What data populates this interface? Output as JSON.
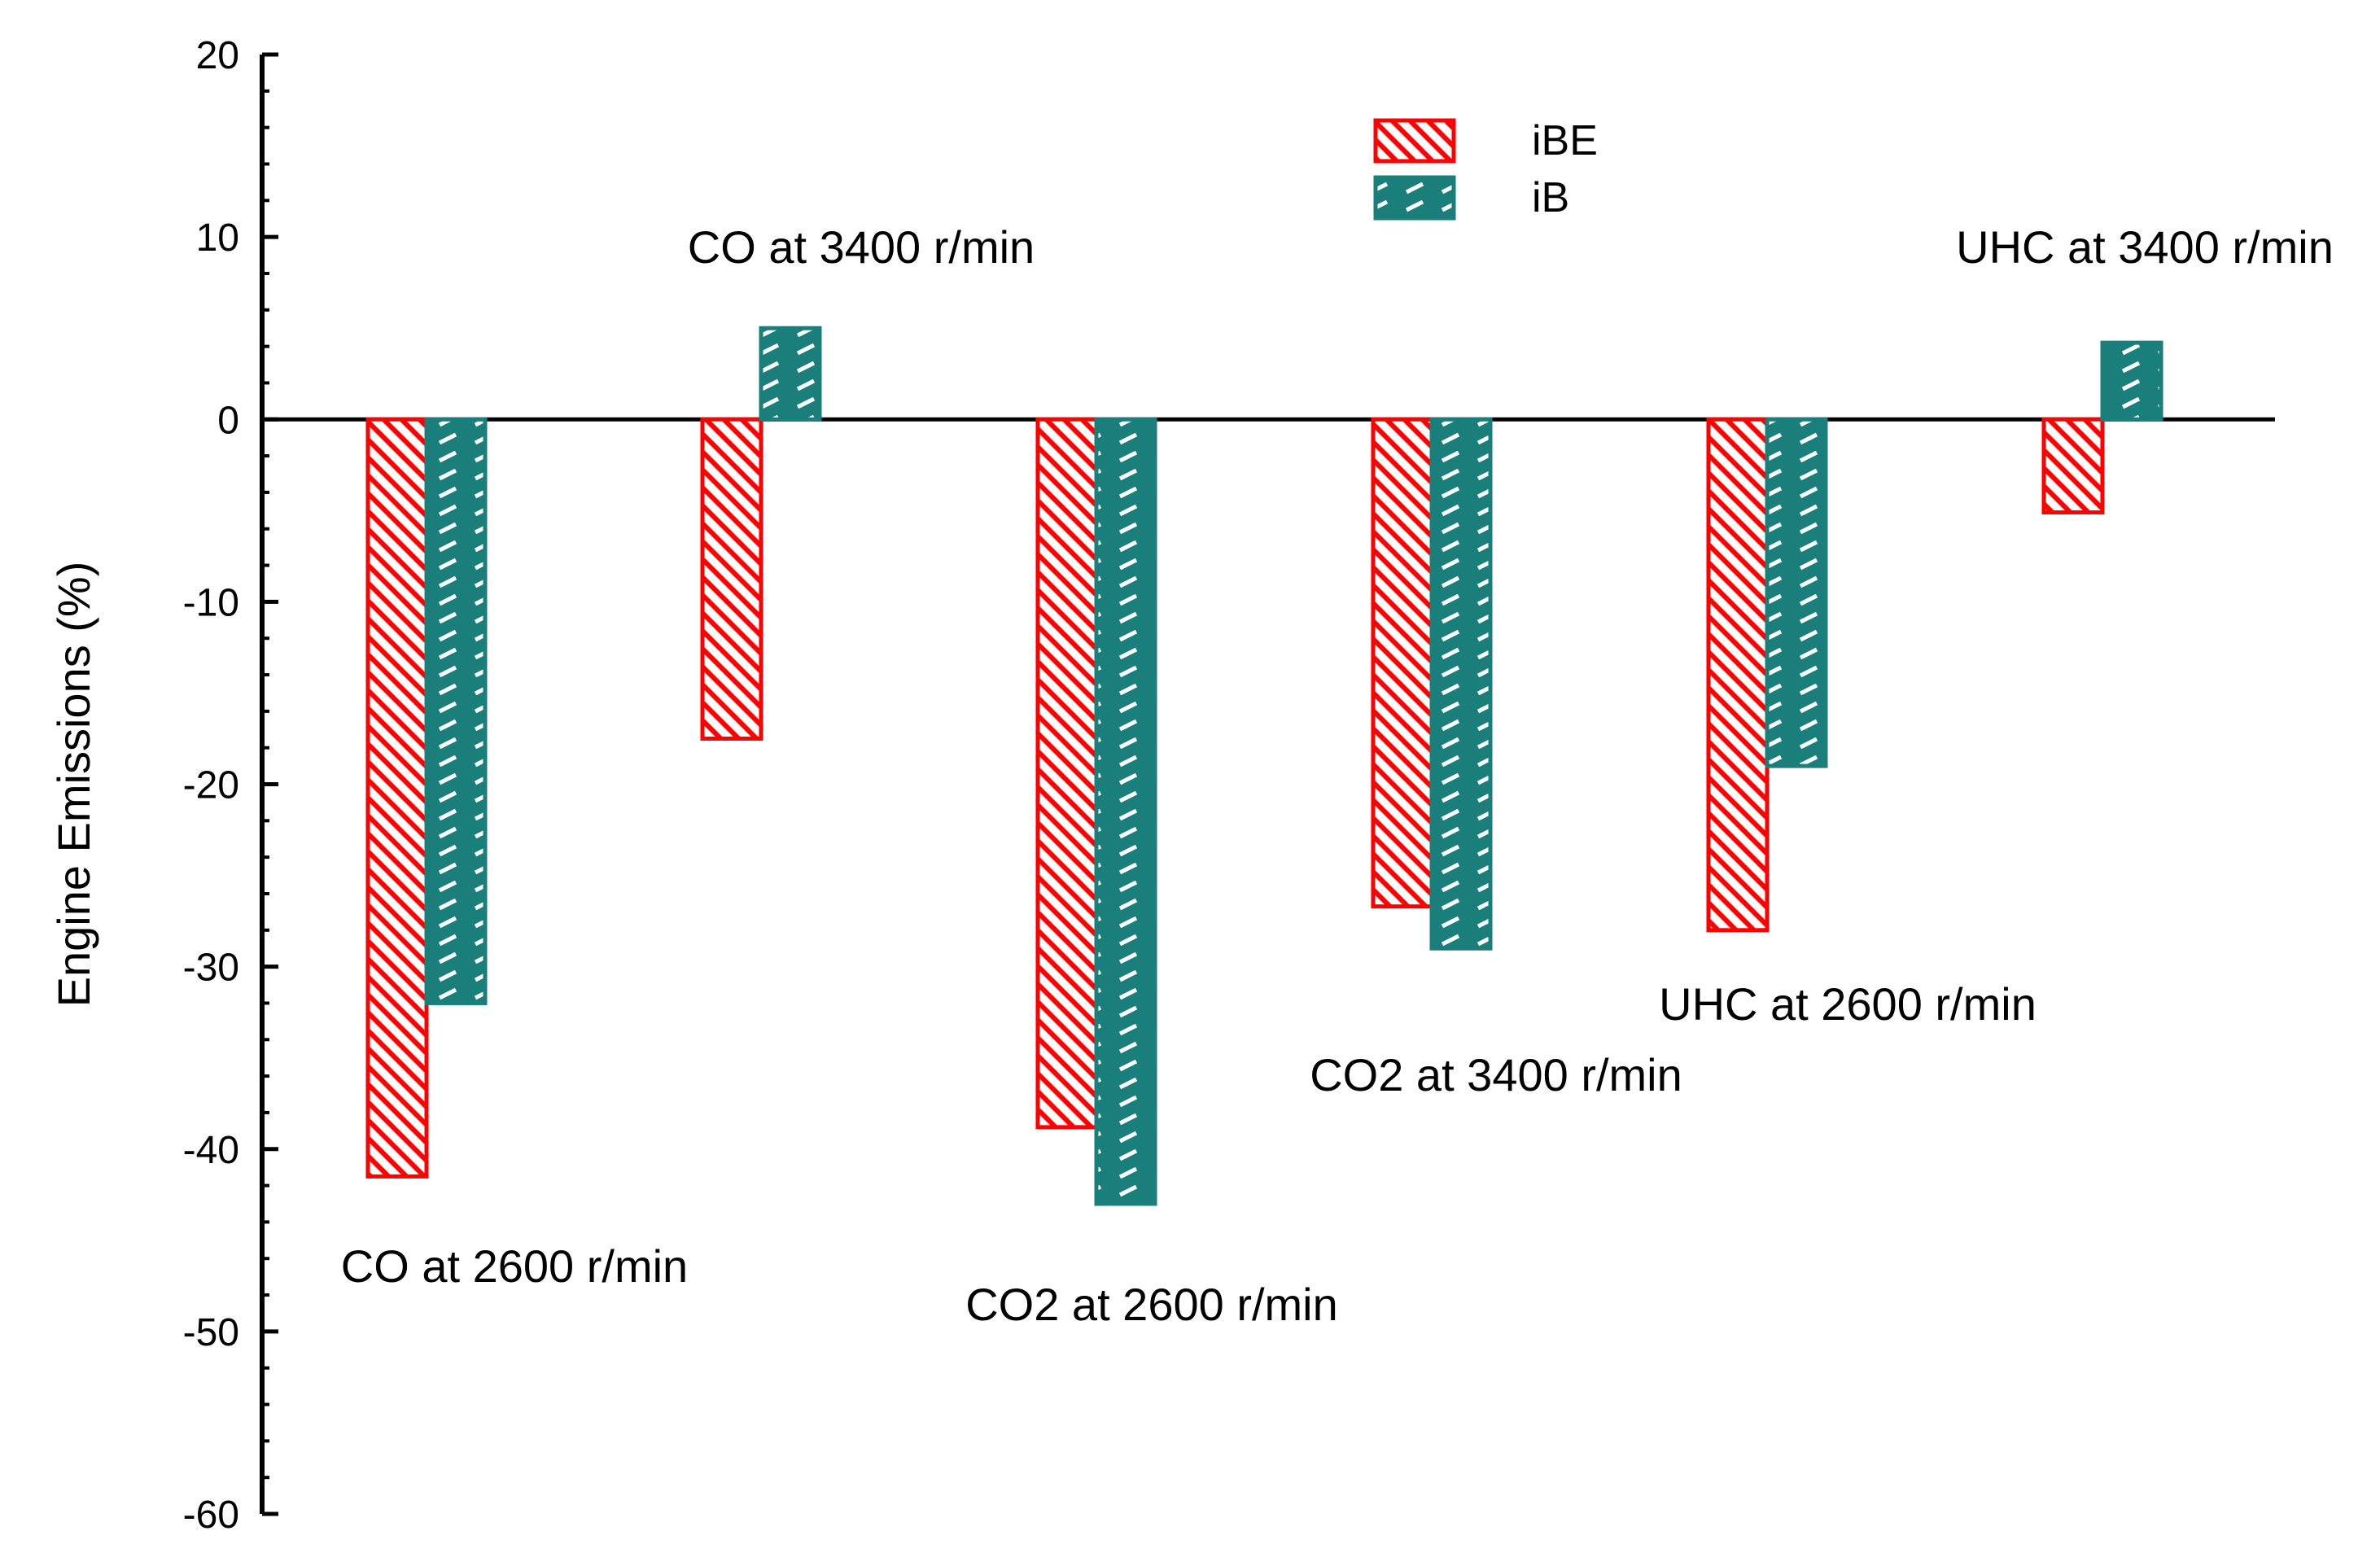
{
  "chart_data": {
    "type": "bar",
    "title": "",
    "xlabel": "",
    "ylabel": "Engine Emissions (%)",
    "ylim": [
      -60,
      20
    ],
    "yticks": [
      20,
      10,
      0,
      -10,
      -20,
      -30,
      -40,
      -50,
      -60
    ],
    "grid": false,
    "legend_position": "top-right",
    "categories": [
      "CO at 2600 r/min",
      "CO at 3400 r/min",
      "CO2 at 2600 r/min",
      "CO2 at 3400 r/min",
      "UHC at 2600 r/min",
      "UHC at 3400 r/min"
    ],
    "series": [
      {
        "name": "iBE",
        "color": "#ff0000",
        "pattern": "diagonal-hatch",
        "values": [
          -41.5,
          -17.5,
          -38.8,
          -26.7,
          -28.0,
          -5.1
        ]
      },
      {
        "name": "iB",
        "color": "#1a7f7a",
        "pattern": "dash-hatch",
        "values": [
          -32.0,
          5.0,
          -43.0,
          -29.0,
          -19.0,
          4.2
        ]
      }
    ]
  }
}
